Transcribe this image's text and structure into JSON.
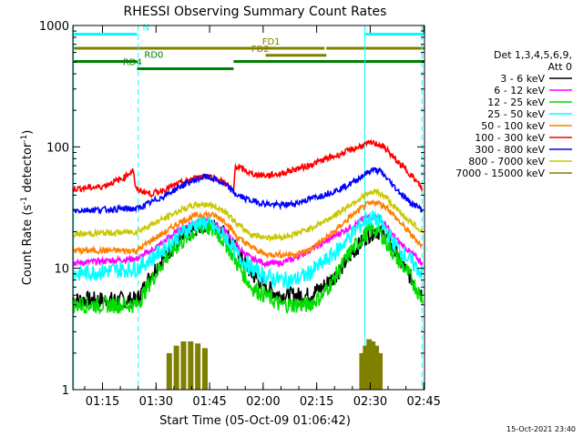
{
  "chart_data": {
    "type": "line",
    "title": "RHESSI Observing Summary Count Rates",
    "xlabel": "Start Time (05-Oct-09 01:06:42)",
    "ylabel_parts": {
      "pre": "Count Rate (s",
      "sup1": "-1",
      "mid": " detector",
      "sup2": "-1",
      "post": ")"
    },
    "x_unit": "minutes after 01:06:42",
    "xlim": [
      0,
      98.5
    ],
    "ylim": [
      1,
      1000
    ],
    "y_scale": "log",
    "x_ticks": [
      {
        "label": "01:15",
        "x": 8.3
      },
      {
        "label": "01:30",
        "x": 23.3
      },
      {
        "label": "01:45",
        "x": 38.3
      },
      {
        "label": "02:00",
        "x": 53.3
      },
      {
        "label": "02:15",
        "x": 68.3
      },
      {
        "label": "02:30",
        "x": 83.3
      },
      {
        "label": "02:45",
        "x": 98.3
      }
    ],
    "y_ticks": [
      {
        "label": "1000",
        "y": 1000
      },
      {
        "label": "100",
        "y": 100
      },
      {
        "label": "10",
        "y": 10
      },
      {
        "label": "1",
        "y": 1
      }
    ],
    "legend_header": [
      "Det 1,3,4,5,6,9,",
      "Att 0"
    ],
    "legend_placement": "right",
    "series": [
      {
        "name": "3 - 6 keV",
        "color": "#000000",
        "x": [
          0,
          18,
          22,
          26,
          30,
          34,
          37,
          40,
          43,
          46,
          50,
          54,
          58,
          62,
          66,
          70,
          72,
          74,
          78,
          82,
          84,
          86,
          88,
          90,
          94,
          98
        ],
        "y": [
          5.5,
          5.5,
          9,
          13,
          17,
          21,
          23,
          22,
          19,
          14,
          9,
          7,
          6,
          6,
          6,
          7,
          8,
          9,
          13,
          18,
          20,
          20,
          18,
          14,
          9,
          6
        ]
      },
      {
        "name": "6 - 12 keV",
        "color": "#ff00ff",
        "x": [
          0,
          18,
          22,
          26,
          30,
          34,
          37,
          40,
          43,
          46,
          50,
          54,
          58,
          62,
          66,
          70,
          74,
          78,
          82,
          84,
          86,
          88,
          90,
          94,
          98
        ],
        "y": [
          11,
          12,
          14,
          17,
          21,
          24,
          25,
          23,
          20,
          15,
          12,
          11,
          11,
          12,
          14,
          16,
          19,
          22,
          26,
          27,
          26,
          22,
          18,
          14,
          11
        ]
      },
      {
        "name": "12 - 25 keV",
        "color": "#00dd00",
        "x": [
          0,
          18,
          22,
          26,
          30,
          34,
          37,
          40,
          43,
          46,
          50,
          54,
          58,
          62,
          66,
          70,
          74,
          78,
          82,
          84,
          86,
          88,
          90,
          94,
          98
        ],
        "y": [
          5,
          5,
          8,
          12,
          16,
          20,
          22,
          20,
          16,
          11,
          7,
          6,
          5,
          5,
          5,
          6,
          9,
          14,
          19,
          21,
          20,
          16,
          13,
          9,
          5.5
        ]
      },
      {
        "name": "25 - 50 keV",
        "color": "#00ffff",
        "x": [
          0,
          18,
          22,
          26,
          30,
          34,
          37,
          40,
          43,
          46,
          50,
          54,
          58,
          62,
          66,
          70,
          74,
          78,
          82,
          84,
          86,
          88,
          90,
          94,
          98
        ],
        "y": [
          9,
          10,
          12,
          15,
          19,
          23,
          24,
          21,
          18,
          13,
          10,
          8.5,
          8,
          8,
          9,
          11,
          14,
          19,
          25,
          26,
          24,
          20,
          16,
          12,
          9
        ]
      },
      {
        "name": "50 - 100 keV",
        "color": "#ff8000",
        "x": [
          0,
          18,
          22,
          26,
          30,
          34,
          37,
          40,
          43,
          46,
          50,
          54,
          58,
          62,
          66,
          70,
          74,
          78,
          82,
          85,
          88,
          90,
          94,
          98
        ],
        "y": [
          14,
          14,
          17,
          20,
          24,
          27,
          28,
          27,
          24,
          18,
          15,
          13,
          13,
          13,
          14,
          17,
          21,
          27,
          33,
          35,
          32,
          27,
          20,
          15
        ]
      },
      {
        "name": "100 - 300 keV",
        "color": "#ff0000",
        "x": [
          0,
          8,
          14,
          17,
          17.5,
          22,
          26,
          30,
          34,
          37,
          40,
          43,
          45,
          45.5,
          50,
          54,
          58,
          62,
          66,
          70,
          74,
          78,
          82,
          84,
          86,
          88,
          90,
          94,
          98
        ],
        "y": [
          45,
          47,
          55,
          65,
          45,
          41,
          45,
          50,
          55,
          58,
          55,
          50,
          42,
          70,
          60,
          58,
          60,
          65,
          70,
          78,
          85,
          95,
          105,
          108,
          104,
          95,
          80,
          62,
          45
        ]
      },
      {
        "name": "300 - 800 keV",
        "color": "#0000ff",
        "x": [
          0,
          18,
          22,
          26,
          30,
          34,
          37,
          40,
          43,
          46,
          50,
          54,
          58,
          62,
          66,
          70,
          74,
          78,
          82,
          84,
          86,
          88,
          90,
          94,
          98
        ],
        "y": [
          30,
          31,
          35,
          40,
          47,
          53,
          57,
          54,
          48,
          40,
          36,
          34,
          33,
          34,
          37,
          40,
          44,
          50,
          60,
          65,
          63,
          55,
          47,
          36,
          30
        ]
      },
      {
        "name": "800 - 7000 keV",
        "color": "#c8c800",
        "x": [
          0,
          18,
          22,
          26,
          30,
          34,
          37,
          40,
          43,
          46,
          50,
          54,
          58,
          62,
          66,
          70,
          74,
          78,
          82,
          85,
          88,
          90,
          94,
          98
        ],
        "y": [
          19,
          20,
          23,
          26,
          30,
          33,
          34,
          32,
          29,
          23,
          19,
          18,
          18,
          19,
          21,
          24,
          28,
          34,
          40,
          43,
          38,
          32,
          25,
          20
        ]
      },
      {
        "name": "7000 - 15000 keV",
        "color": "#808000",
        "x": [
          27,
          29,
          31,
          33,
          35,
          37,
          81,
          82,
          83,
          84,
          85,
          86
        ],
        "y": [
          2,
          2.3,
          2.5,
          2.5,
          2.4,
          2.2,
          2,
          2.3,
          2.6,
          2.5,
          2.3,
          2
        ]
      }
    ],
    "status_bars": [
      {
        "label": "N",
        "color": "#00ffff",
        "segments": [
          [
            0,
            18
          ],
          [
            82,
            98.5
          ]
        ],
        "level": 848
      },
      {
        "label": "FD1",
        "color": "#808000",
        "segments": [
          [
            0,
            70.5
          ],
          [
            71,
            98.5
          ]
        ],
        "level": 650
      },
      {
        "label": "FD2",
        "color": "#808000",
        "segments": [
          [
            54,
            71
          ]
        ],
        "level": 568
      },
      {
        "label": "RD0",
        "color": "#008000",
        "segments": [
          [
            0,
            18
          ],
          [
            45,
            98.5
          ]
        ],
        "level": 505
      },
      {
        "label": "RD4",
        "color": "#008000",
        "segments": [
          [
            18,
            45
          ]
        ],
        "level": 440
      }
    ],
    "vlines": [
      {
        "x": 0.2,
        "style": "solid",
        "color": "#00ffff"
      },
      {
        "x": 18.3,
        "style": "dashed",
        "color": "#00ffff"
      },
      {
        "x": 81.8,
        "style": "solid",
        "color": "#00ffff"
      },
      {
        "x": 97.8,
        "style": "dashed",
        "color": "#00ffff"
      }
    ]
  },
  "footer": {
    "timestamp": "15-Oct-2021 23:40"
  }
}
